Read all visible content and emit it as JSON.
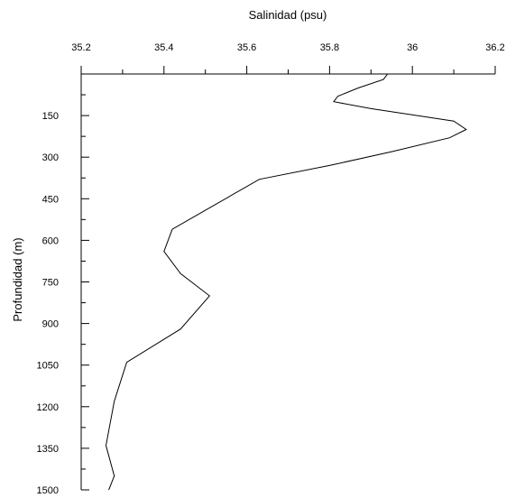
{
  "chart_data": {
    "type": "line",
    "xlabel": "Salinidad (psu)",
    "ylabel": "Profundidad (m)",
    "x_axis_position": "top",
    "y_axis_inverted": true,
    "xlim": [
      35.2,
      36.2
    ],
    "ylim": [
      0,
      1500
    ],
    "x_ticks": [
      "35.2",
      "35.4",
      "35.6",
      "35.8",
      "36",
      "36.2"
    ],
    "x_tick_values": [
      35.2,
      35.4,
      35.6,
      35.8,
      36.0,
      36.2
    ],
    "x_minor_step": 0.1,
    "y_ticks": [
      "150",
      "300",
      "450",
      "600",
      "750",
      "900",
      "1050",
      "1200",
      "1350",
      "1500"
    ],
    "y_tick_values": [
      150,
      300,
      450,
      600,
      750,
      900,
      1050,
      1200,
      1350,
      1500
    ],
    "y_minor_step": 75,
    "grid": false,
    "series": [
      {
        "x": [
          35.94,
          35.93,
          35.87,
          35.82,
          35.81,
          35.9,
          36.1,
          36.13,
          36.09,
          35.95,
          35.8,
          35.63,
          35.49,
          35.42,
          35.4,
          35.44,
          35.51,
          35.44,
          35.31,
          35.28,
          35.26,
          35.28,
          35.24
        ],
        "y": [
          0,
          20,
          50,
          80,
          100,
          125,
          170,
          200,
          230,
          280,
          330,
          380,
          500,
          560,
          640,
          720,
          800,
          920,
          1040,
          1180,
          1340,
          1450,
          1600
        ]
      }
    ]
  }
}
